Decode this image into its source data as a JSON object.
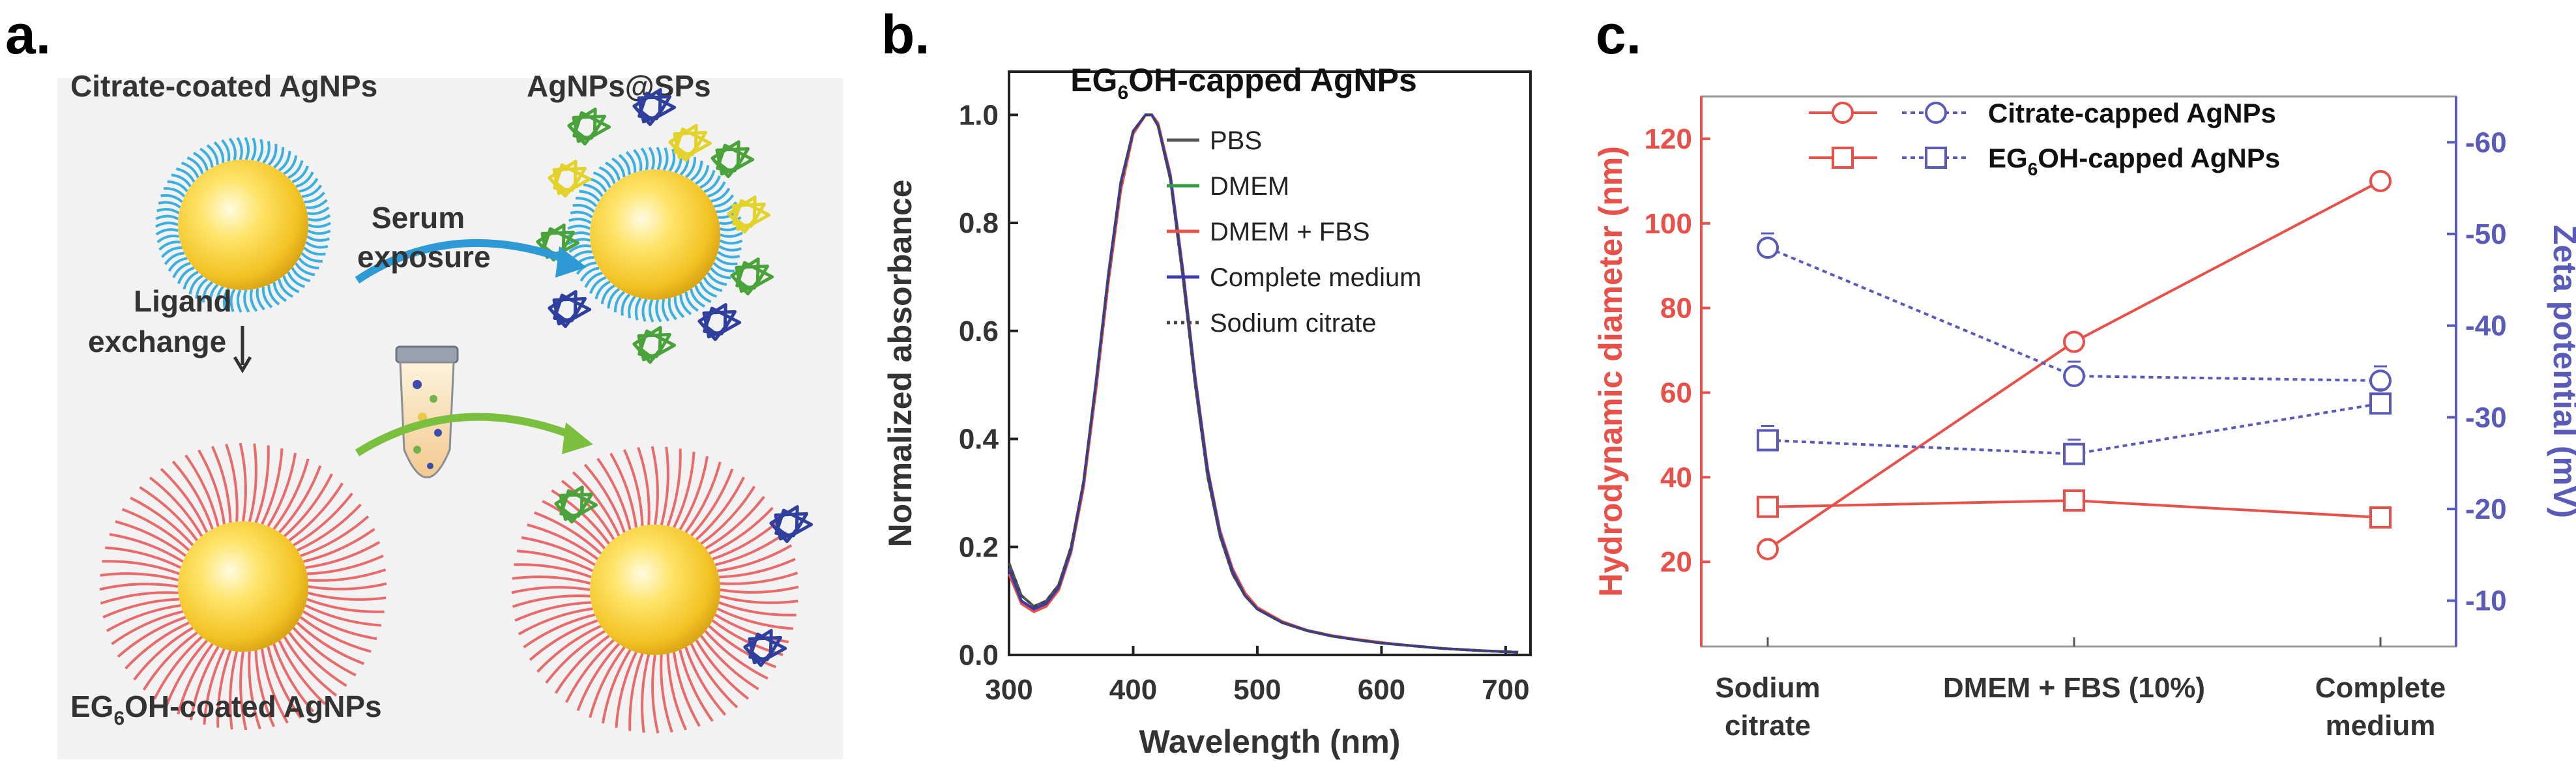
{
  "panel_a": {
    "letter": "a.",
    "citrate_label": "Citrate-coated AgNPs",
    "corona_label": "AgNPs@SPs",
    "serum_label_1": "Serum",
    "serum_label_2": "exposure",
    "ligand_label_1": "Ligand",
    "ligand_label_2": "exchange",
    "eg_label_pre": "EG",
    "eg_label_sub": "6",
    "eg_label_post": "OH-coated AgNPs"
  },
  "chart_data": [
    {
      "type": "line",
      "panel": "b.",
      "title_pre": "EG",
      "title_sub": "6",
      "title_post": "OH-capped AgNPs",
      "xlabel": "Wavelength (nm)",
      "ylabel": "Normalized absorbance",
      "xlim": [
        300,
        720
      ],
      "ylim": [
        0,
        1.08
      ],
      "xticks": [
        300,
        400,
        500,
        600,
        700
      ],
      "yticks": [
        "0.0",
        "0.2",
        "0.4",
        "0.6",
        "0.8",
        "1.0"
      ],
      "x": [
        300,
        310,
        320,
        330,
        340,
        350,
        360,
        370,
        380,
        390,
        400,
        410,
        415,
        420,
        430,
        440,
        450,
        460,
        470,
        480,
        490,
        500,
        520,
        540,
        560,
        580,
        600,
        620,
        650,
        680,
        700,
        710
      ],
      "series": [
        {
          "name": "PBS",
          "color": "#555555",
          "dash": "",
          "values": [
            0.17,
            0.11,
            0.09,
            0.1,
            0.13,
            0.2,
            0.32,
            0.5,
            0.7,
            0.87,
            0.97,
            1.0,
            1.0,
            0.98,
            0.88,
            0.7,
            0.5,
            0.33,
            0.22,
            0.15,
            0.11,
            0.085,
            0.06,
            0.045,
            0.035,
            0.028,
            0.022,
            0.018,
            0.012,
            0.008,
            0.006,
            0.005
          ]
        },
        {
          "name": "DMEM",
          "color": "#2e9e3e",
          "dash": "",
          "values": [
            0.16,
            0.1,
            0.085,
            0.095,
            0.125,
            0.195,
            0.315,
            0.5,
            0.7,
            0.87,
            0.97,
            1.0,
            1.0,
            0.98,
            0.885,
            0.71,
            0.51,
            0.34,
            0.225,
            0.155,
            0.11,
            0.085,
            0.06,
            0.045,
            0.035,
            0.028,
            0.022,
            0.018,
            0.012,
            0.008,
            0.006,
            0.005
          ]
        },
        {
          "name": "DMEM + FBS",
          "color": "#e8504a",
          "dash": "",
          "values": [
            0.15,
            0.095,
            0.08,
            0.09,
            0.12,
            0.19,
            0.31,
            0.49,
            0.69,
            0.86,
            0.965,
            1.0,
            1.0,
            0.985,
            0.89,
            0.715,
            0.515,
            0.345,
            0.23,
            0.16,
            0.115,
            0.088,
            0.062,
            0.046,
            0.036,
            0.029,
            0.023,
            0.018,
            0.012,
            0.008,
            0.006,
            0.005
          ]
        },
        {
          "name": "Complete medium",
          "color": "#3a3aa8",
          "dash": "",
          "values": [
            0.16,
            0.1,
            0.085,
            0.095,
            0.125,
            0.195,
            0.32,
            0.505,
            0.705,
            0.875,
            0.97,
            1.0,
            1.0,
            0.98,
            0.885,
            0.71,
            0.51,
            0.34,
            0.225,
            0.155,
            0.11,
            0.085,
            0.06,
            0.045,
            0.035,
            0.028,
            0.022,
            0.018,
            0.012,
            0.008,
            0.006,
            0.005
          ]
        },
        {
          "name": "Sodium citrate",
          "color": "#444444",
          "dash": "6,7",
          "values": [
            0.17,
            0.11,
            0.09,
            0.1,
            0.13,
            0.2,
            0.32,
            0.5,
            0.7,
            0.87,
            0.97,
            1.0,
            1.0,
            0.98,
            0.88,
            0.7,
            0.5,
            0.33,
            0.22,
            0.15,
            0.11,
            0.085,
            0.06,
            0.045,
            0.035,
            0.028,
            0.022,
            0.018,
            0.012,
            0.008,
            0.006,
            0.005
          ]
        }
      ]
    },
    {
      "type": "line",
      "panel": "c.",
      "categories": [
        [
          "Sodium",
          "citrate"
        ],
        [
          "DMEM + FBS (10%)"
        ],
        [
          "Complete",
          "medium"
        ]
      ],
      "ylabel_left": "Hydrodynamic diameter (nm)",
      "ylabel_right": "Zeta potential (mV)",
      "ylim_left": [
        0,
        130
      ],
      "yticks_left": [
        20,
        40,
        60,
        80,
        100,
        120
      ],
      "ylim_right": [
        -5,
        -65
      ],
      "yticks_right": [
        -10,
        -20,
        -30,
        -40,
        -50,
        -60
      ],
      "left_color": "#e8504a",
      "right_color": "#5a5ab8",
      "legend": [
        {
          "label": "Citrate-capped AgNPs",
          "marker": "circle"
        },
        {
          "label_pre": "EG",
          "label_sub": "6",
          "label_post": "OH-capped AgNPs",
          "marker": "square"
        }
      ],
      "series": [
        {
          "name": "Citrate-capped AgNPs diameter",
          "axis": "left",
          "marker": "circle",
          "values": [
            23,
            72,
            110
          ]
        },
        {
          "name": "EG6OH-capped AgNPs diameter",
          "axis": "left",
          "marker": "square",
          "values": [
            33,
            34.5,
            30.5
          ]
        },
        {
          "name": "Citrate-capped AgNPs zeta",
          "axis": "right",
          "marker": "circle",
          "values": [
            -48.5,
            -34.5,
            -34
          ]
        },
        {
          "name": "EG6OH-capped AgNPs zeta",
          "axis": "right",
          "marker": "square",
          "values": [
            -27.5,
            -26,
            -31.5
          ]
        }
      ]
    }
  ]
}
